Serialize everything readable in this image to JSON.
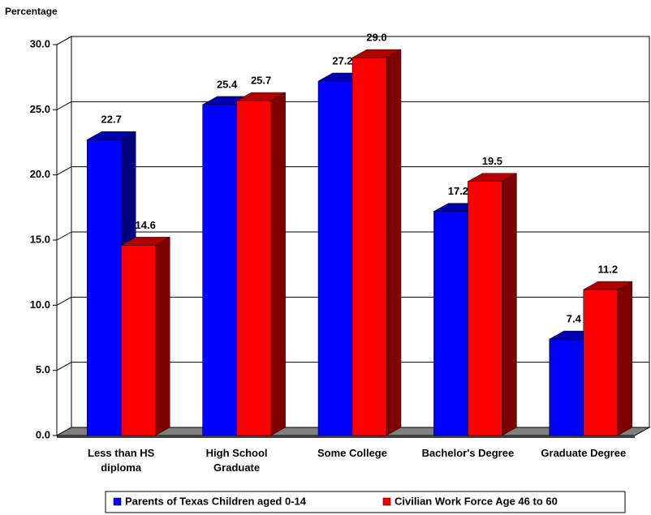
{
  "chart_data": {
    "type": "bar3d",
    "y_label": "Percentage",
    "categories": [
      "Less than HS diploma",
      "High School Graduate",
      "Some College",
      "Bachelor's Degree",
      "Graduate Degree"
    ],
    "series": [
      {
        "name": "Parents of Texas Children aged 0-14",
        "color": "#0000ff",
        "values": [
          22.7,
          25.4,
          27.2,
          17.2,
          7.4
        ],
        "value_labels": [
          "22.7",
          "25.4",
          "27.2",
          "17.2",
          "7.4"
        ]
      },
      {
        "name": "Civilian Work Force Age 46 to 60",
        "color": "#ff0000",
        "values": [
          14.6,
          25.7,
          29.0,
          19.5,
          11.2
        ],
        "value_labels": [
          "14.6",
          "25.7",
          "29.0",
          "19.5",
          "11.2"
        ]
      }
    ],
    "ylim": [
      0,
      30
    ],
    "yticks": [
      {
        "value": 0,
        "label": "0.0"
      },
      {
        "value": 5,
        "label": "5.0"
      },
      {
        "value": 10,
        "label": "10.0"
      },
      {
        "value": 15,
        "label": "15.0"
      },
      {
        "value": 20,
        "label": "20.0"
      },
      {
        "value": 25,
        "label": "25.0"
      },
      {
        "value": 30,
        "label": "30.0"
      }
    ],
    "grid": true,
    "legend": "bottom"
  }
}
